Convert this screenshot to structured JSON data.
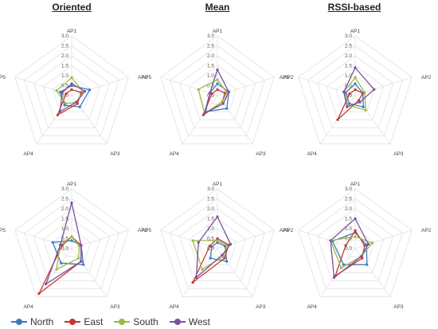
{
  "column_titles": [
    "Oriented",
    "Mean",
    "RSSI-based"
  ],
  "colors": {
    "North": "#3a7cc0",
    "East": "#c8372e",
    "South": "#9bbb45",
    "West": "#7d4f9e"
  },
  "legend": [
    "North",
    "East",
    "South",
    "West"
  ],
  "chart_data": [
    {
      "type": "radar",
      "title": "Oriented",
      "axes": [
        "AP1",
        "AP2",
        "AP3",
        "AP4",
        "AP5"
      ],
      "ticks": [
        "3.0",
        "2.5",
        "2.0",
        "1.5",
        "1.0",
        "0.5",
        "0.0"
      ],
      "rmax": 3.0,
      "series": [
        {
          "name": "North",
          "values": [
            0.5,
            0.95,
            0.7,
            0.6,
            0.6
          ]
        },
        {
          "name": "East",
          "values": [
            0.3,
            0.5,
            0.5,
            1.2,
            0.3
          ]
        },
        {
          "name": "South",
          "values": [
            0.9,
            0.6,
            0.4,
            0.5,
            0.8
          ]
        },
        {
          "name": "West",
          "values": [
            0.6,
            0.7,
            0.4,
            1.0,
            0.5
          ]
        }
      ]
    },
    {
      "type": "radar",
      "title": "Mean",
      "axes": [
        "AP1",
        "AP2",
        "AP3",
        "AP4",
        "AP5"
      ],
      "ticks": [
        "3.0",
        "2.5",
        "2.0",
        "1.5",
        "1.0",
        "0.5",
        "0.0"
      ],
      "rmax": 3.0,
      "series": [
        {
          "name": "North",
          "values": [
            0.6,
            0.6,
            0.8,
            1.0,
            0.4
          ]
        },
        {
          "name": "East",
          "values": [
            0.3,
            0.4,
            0.4,
            1.2,
            0.3
          ]
        },
        {
          "name": "South",
          "values": [
            0.8,
            0.5,
            0.4,
            1.1,
            1.0
          ]
        },
        {
          "name": "West",
          "values": [
            1.3,
            0.6,
            0.5,
            1.1,
            0.4
          ]
        }
      ]
    },
    {
      "type": "radar",
      "title": "RSSI-based",
      "axes": [
        "AP1",
        "AP2",
        "AP3",
        "AP4",
        "AP5"
      ],
      "ticks": [
        "3.0",
        "2.5",
        "2.0",
        "1.5",
        "1.0",
        "0.5",
        "0.0"
      ],
      "rmax": 3.0,
      "series": [
        {
          "name": "North",
          "values": [
            0.6,
            0.4,
            0.7,
            0.5,
            0.5
          ]
        },
        {
          "name": "East",
          "values": [
            0.3,
            0.4,
            0.3,
            1.5,
            0.3
          ]
        },
        {
          "name": "South",
          "values": [
            0.9,
            0.5,
            0.9,
            0.6,
            0.6
          ]
        },
        {
          "name": "West",
          "values": [
            1.4,
            1.0,
            0.4,
            0.7,
            0.6
          ]
        }
      ]
    },
    {
      "type": "radar",
      "title": "",
      "axes": [
        "AP1",
        "AP2",
        "AP3",
        "AP4",
        "AP5"
      ],
      "ticks": [
        "3.0",
        "2.5",
        "2.0",
        "1.5",
        "1.0",
        "0.5",
        "0.0"
      ],
      "rmax": 3.0,
      "series": [
        {
          "name": "North",
          "values": [
            0.4,
            0.5,
            1.0,
            0.9,
            1.0
          ]
        },
        {
          "name": "East",
          "values": [
            0.6,
            0.5,
            0.8,
            2.8,
            0.5
          ]
        },
        {
          "name": "South",
          "values": [
            0.6,
            0.4,
            0.6,
            1.3,
            0.6
          ]
        },
        {
          "name": "West",
          "values": [
            2.3,
            0.5,
            0.8,
            2.2,
            0.6
          ]
        }
      ]
    },
    {
      "type": "radar",
      "title": "",
      "axes": [
        "AP1",
        "AP2",
        "AP3",
        "AP4",
        "AP5"
      ],
      "ticks": [
        "3.0",
        "2.5",
        "2.0",
        "1.5",
        "1.0",
        "0.5",
        "0.0"
      ],
      "rmax": 3.0,
      "series": [
        {
          "name": "North",
          "values": [
            0.3,
            0.4,
            0.8,
            0.6,
            0.3
          ]
        },
        {
          "name": "East",
          "values": [
            0.5,
            0.6,
            0.6,
            2.1,
            0.4
          ]
        },
        {
          "name": "South",
          "values": [
            0.4,
            0.5,
            0.5,
            1.3,
            1.3
          ]
        },
        {
          "name": "West",
          "values": [
            1.6,
            0.7,
            0.4,
            1.8,
            1.0
          ]
        }
      ]
    },
    {
      "type": "radar",
      "title": "",
      "axes": [
        "AP1",
        "AP2",
        "AP3",
        "AP4",
        "AP5"
      ],
      "ticks": [
        "3.0",
        "2.5",
        "2.0",
        "1.5",
        "1.0",
        "0.5",
        "0.0"
      ],
      "rmax": 3.0,
      "series": [
        {
          "name": "North",
          "values": [
            0.8,
            0.6,
            1.0,
            1.0,
            1.2
          ]
        },
        {
          "name": "East",
          "values": [
            0.9,
            0.5,
            0.6,
            1.7,
            0.5
          ]
        },
        {
          "name": "South",
          "values": [
            0.6,
            0.9,
            0.5,
            1.2,
            1.3
          ]
        },
        {
          "name": "West",
          "values": [
            1.5,
            0.7,
            0.5,
            1.8,
            1.3
          ]
        }
      ]
    }
  ]
}
